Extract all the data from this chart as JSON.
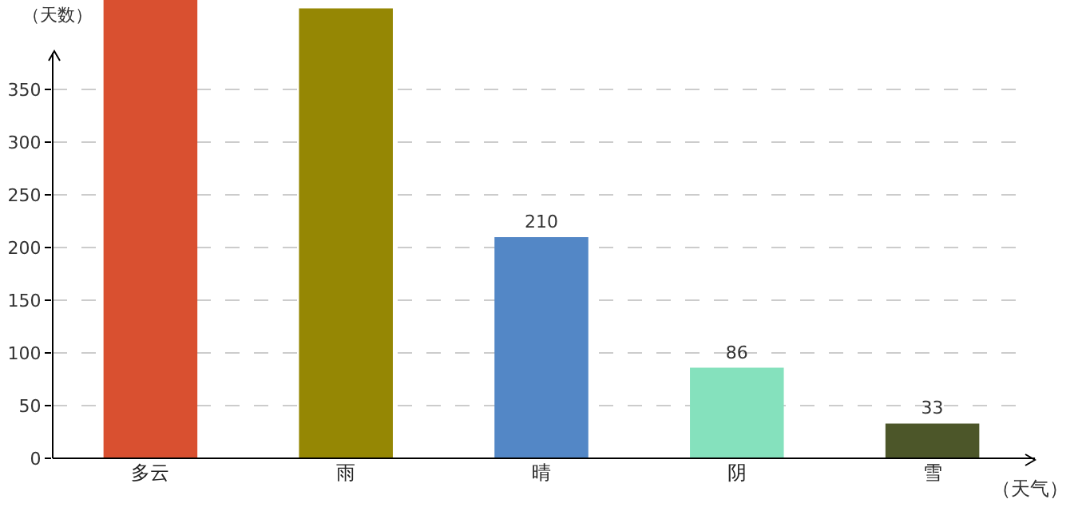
{
  "chart_data": {
    "type": "bar",
    "ylabel": "（天数）",
    "xlabel": "（天气）",
    "categories": [
      "多云",
      "雨",
      "晴",
      "阴",
      "雪"
    ],
    "values": [
      435,
      427,
      210,
      86,
      33
    ],
    "colors": [
      "#d95030",
      "#958704",
      "#5387c6",
      "#85e1bd",
      "#4c5629"
    ],
    "value_labels": [
      null,
      null,
      "210",
      "86",
      "33"
    ],
    "ylim": [
      0,
      435
    ],
    "yticks": [
      0,
      50,
      100,
      150,
      200,
      250,
      300,
      350
    ],
    "grid": "y",
    "legend": false
  }
}
